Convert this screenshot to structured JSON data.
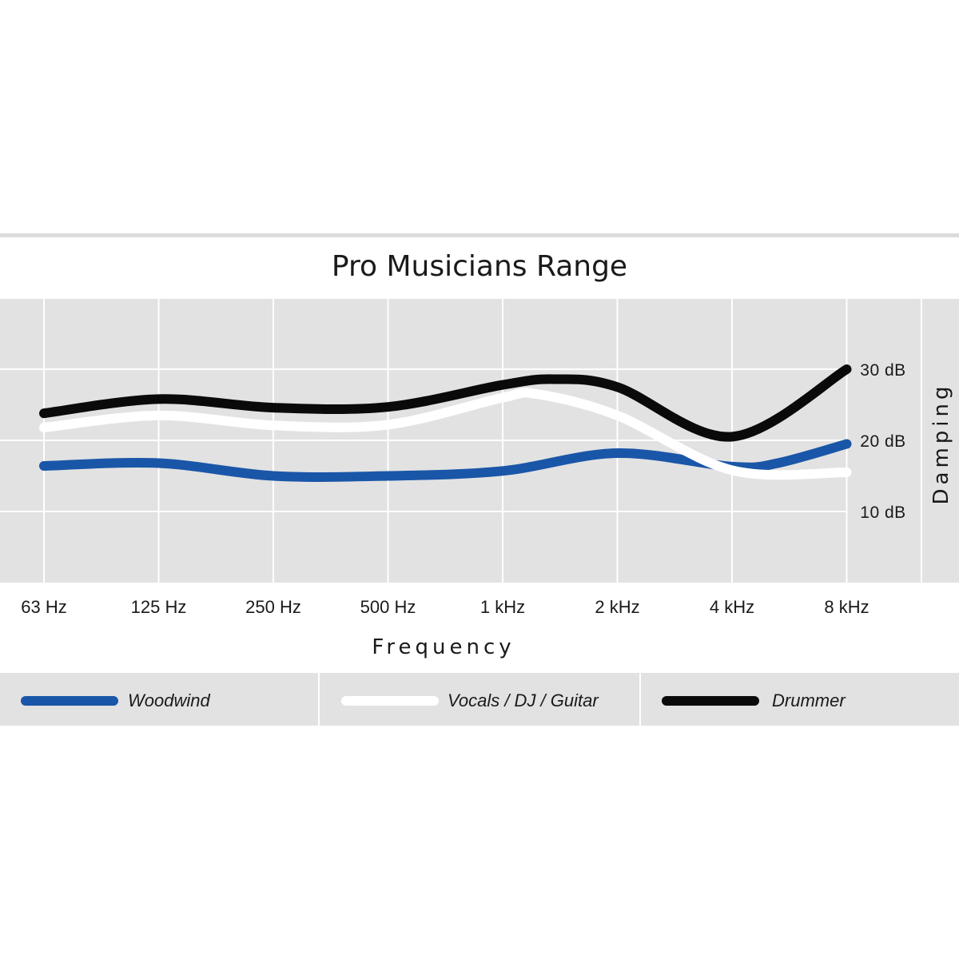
{
  "chart_data": {
    "type": "line",
    "title": "Pro Musicians Range",
    "xlabel": "Frequency",
    "ylabel": "Damping",
    "categories": [
      "63 Hz",
      "125 Hz",
      "250 Hz",
      "500 Hz",
      "1 kHz",
      "2 kHz",
      "4 kHz",
      "8 kHz"
    ],
    "y_ticks": [
      {
        "value": 30,
        "label": "30 dB"
      },
      {
        "value": 20,
        "label": "20 dB"
      },
      {
        "value": 10,
        "label": "10 dB"
      }
    ],
    "ylim": [
      0,
      40
    ],
    "grid": true,
    "legend_position": "bottom",
    "series": [
      {
        "name": "Woodwind",
        "color": "#1a56a8",
        "x": [
          0,
          1,
          2,
          3,
          4,
          5,
          6,
          6.4,
          7
        ],
        "values": [
          16.4,
          16.8,
          15.0,
          15.0,
          15.7,
          18.2,
          16.3,
          16.8,
          19.5
        ]
      },
      {
        "name": "Vocals / DJ / Guitar",
        "color": "#ffffff",
        "x": [
          0,
          1,
          2,
          3,
          4,
          4.3,
          5,
          6,
          7
        ],
        "values": [
          21.8,
          23.5,
          22.1,
          22.2,
          26.0,
          26.5,
          23.5,
          15.8,
          15.5
        ]
      },
      {
        "name": "Drummer",
        "color": "#0a0a0a",
        "x": [
          0,
          1,
          2,
          3,
          4,
          4.45,
          5,
          6,
          7
        ],
        "values": [
          23.8,
          25.8,
          24.6,
          24.7,
          27.8,
          28.6,
          27.5,
          20.5,
          30.0
        ]
      }
    ]
  }
}
